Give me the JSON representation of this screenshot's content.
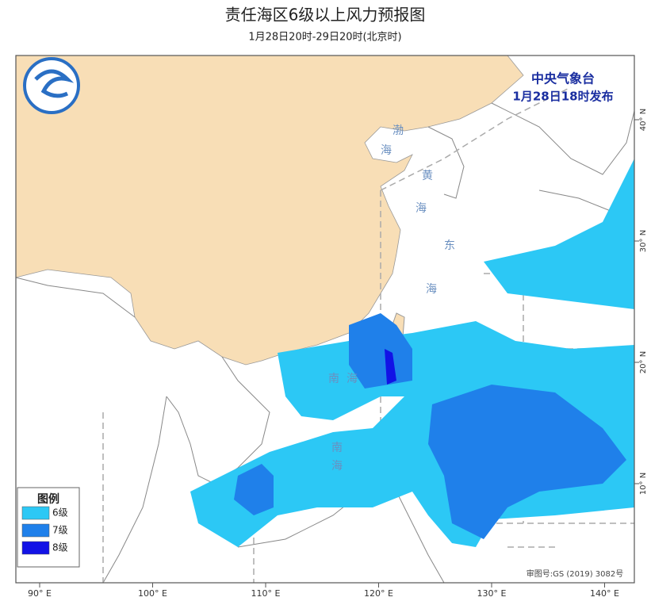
{
  "header": {
    "title": "责任海区6级以上风力预报图",
    "subtitle": "1月28日20时-29日20时(北京时)"
  },
  "agency": {
    "name": "中央气象台",
    "issued": "1月28日18时发布"
  },
  "sea_labels": [
    "渤",
    "海",
    "黄",
    "海",
    "东",
    "海",
    "南",
    "海",
    "南",
    "海"
  ],
  "legend": {
    "title": "图例",
    "items": [
      {
        "label": "6级",
        "color": "#2cc8f5"
      },
      {
        "label": "7级",
        "color": "#1f80ea"
      },
      {
        "label": "8级",
        "color": "#1212e6"
      }
    ]
  },
  "axes": {
    "lon_ticks": [
      {
        "value": 90,
        "label": "90° E"
      },
      {
        "value": 100,
        "label": "100° E"
      },
      {
        "value": 110,
        "label": "110° E"
      },
      {
        "value": 120,
        "label": "120° E"
      },
      {
        "value": 130,
        "label": "130° E"
      },
      {
        "value": 140,
        "label": "140° E"
      }
    ],
    "lat_ticks": [
      {
        "value": 40,
        "label": "40° N"
      },
      {
        "value": 30,
        "label": "30° N"
      },
      {
        "value": 20,
        "label": "20° N"
      },
      {
        "value": 10,
        "label": "10° N"
      }
    ]
  },
  "footer": {
    "approval": "审图号:GS (2019) 3082号"
  }
}
